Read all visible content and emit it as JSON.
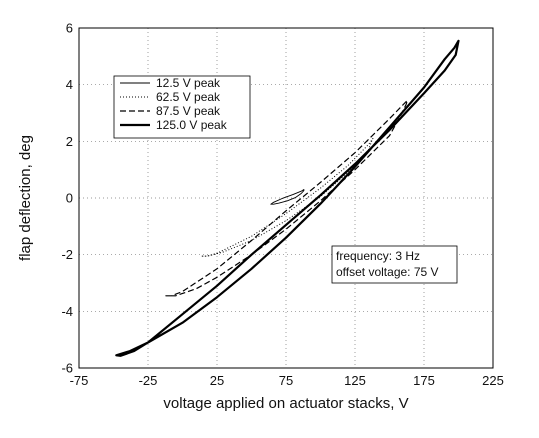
{
  "chart_data": {
    "type": "line",
    "title": "",
    "xlabel": "voltage applied on actuator stacks, V",
    "ylabel": "flap deflection, deg",
    "xlim": [
      -75,
      225
    ],
    "ylim": [
      -6,
      6
    ],
    "xticks": [
      -75,
      -25,
      25,
      75,
      125,
      175,
      225
    ],
    "yticks": [
      -6,
      -4,
      -2,
      0,
      2,
      4,
      6
    ],
    "grid": true,
    "legend_position": "top-left",
    "series": [
      {
        "name": "12.5 V peak",
        "style": "solid-thin",
        "x": [
          64,
          66,
          72,
          80,
          86,
          88,
          88,
          86,
          82,
          76,
          70,
          66,
          64
        ],
        "y": [
          -0.22,
          -0.15,
          -0.02,
          0.12,
          0.24,
          0.3,
          0.26,
          0.16,
          0.02,
          -0.1,
          -0.18,
          -0.22,
          -0.22
        ]
      },
      {
        "name": "62.5 V peak",
        "style": "dotted",
        "x": [
          14,
          18,
          25,
          50,
          75,
          100,
          120,
          135,
          138,
          137,
          134,
          120,
          100,
          75,
          50,
          30,
          18,
          14
        ],
        "y": [
          -2.05,
          -2.05,
          -1.95,
          -1.35,
          -0.55,
          0.35,
          1.15,
          1.9,
          2.1,
          2.0,
          1.6,
          0.9,
          0.05,
          -0.8,
          -1.5,
          -1.9,
          -2.05,
          -2.05
        ]
      },
      {
        "name": "87.5 V peak",
        "style": "dashed",
        "x": [
          -12,
          -8,
          0,
          25,
          50,
          75,
          100,
          125,
          150,
          160,
          163,
          162,
          158,
          150,
          125,
          100,
          75,
          50,
          25,
          10,
          -5,
          -12
        ],
        "y": [
          -3.45,
          -3.45,
          -3.3,
          -2.5,
          -1.5,
          -0.45,
          0.55,
          1.6,
          2.8,
          3.3,
          3.45,
          3.3,
          2.9,
          2.2,
          1.0,
          -0.1,
          -1.1,
          -2.0,
          -2.8,
          -3.2,
          -3.45,
          -3.45
        ]
      },
      {
        "name": "125.0 V peak",
        "style": "solid-thick",
        "x": [
          -48,
          -45,
          -35,
          -25,
          0,
          25,
          50,
          75,
          100,
          125,
          150,
          175,
          190,
          198,
          200,
          197,
          190,
          175,
          150,
          125,
          100,
          75,
          50,
          25,
          0,
          -25,
          -38,
          -48
        ],
        "y": [
          -5.55,
          -5.57,
          -5.4,
          -5.1,
          -4.1,
          -3.1,
          -2.0,
          -0.95,
          0.1,
          1.2,
          2.4,
          3.7,
          4.5,
          5.05,
          5.55,
          5.3,
          4.9,
          3.9,
          2.5,
          1.1,
          -0.2,
          -1.4,
          -2.5,
          -3.5,
          -4.4,
          -5.1,
          -5.4,
          -5.55
        ]
      }
    ],
    "annotation": {
      "lines": [
        "frequency: 3 Hz",
        "offset voltage: 75 V"
      ]
    }
  }
}
